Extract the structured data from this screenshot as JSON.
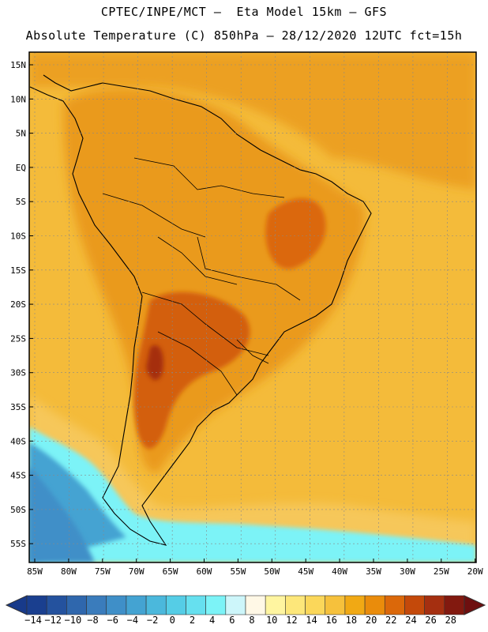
{
  "header": {
    "line1": "CPTEC/INPE/MCT –  Eta Model 15km – GFS",
    "line2": "Absolute Temperature (C) 850hPa – 28/12/2020 12UTC fct=15h"
  },
  "axes": {
    "lat_labels": [
      "15N",
      "10N",
      "5N",
      "EQ",
      "5S",
      "10S",
      "15S",
      "20S",
      "25S",
      "30S",
      "35S",
      "40S",
      "45S",
      "50S",
      "55S"
    ],
    "lon_labels": [
      "85W",
      "80W",
      "75W",
      "70W",
      "65W",
      "60W",
      "55W",
      "50W",
      "45W",
      "40W",
      "35W",
      "30W",
      "25W",
      "20W"
    ]
  },
  "colorbar": {
    "labels": [
      "-14",
      "-12",
      "-10",
      "-8",
      "-6",
      "-4",
      "-2",
      "0",
      "2",
      "4",
      "6",
      "8",
      "10",
      "12",
      "14",
      "16",
      "18",
      "20",
      "22",
      "24",
      "26",
      "28"
    ],
    "colors": [
      "#1a3f8f",
      "#24529e",
      "#2f67ad",
      "#3a7cbc",
      "#3f8fc8",
      "#44a3d2",
      "#4bb8dc",
      "#55cde6",
      "#66e0ef",
      "#7cf3f7",
      "#cdf6fa",
      "#fff8e6",
      "#fff5a0",
      "#fde77a",
      "#fbd75a",
      "#f6c13c",
      "#f1a914",
      "#ea8c0b",
      "#db680a",
      "#c4490a",
      "#a52f10",
      "#82190f"
    ],
    "under_color": "#183a8a",
    "over_color": "#6e0f0f"
  },
  "chart_data": {
    "type": "heatmap",
    "title": "Absolute Temperature (C) 850hPa – 28/12/2020 12UTC fct=15h",
    "variable": "Absolute Temperature",
    "units": "C",
    "level": "850hPa",
    "model": "Eta Model 15km – GFS",
    "x_range": [
      -85,
      -20
    ],
    "y_range": [
      -57,
      17
    ],
    "xlabel": "",
    "ylabel": "",
    "color_scale": [
      -14,
      28
    ],
    "grid": true
  }
}
